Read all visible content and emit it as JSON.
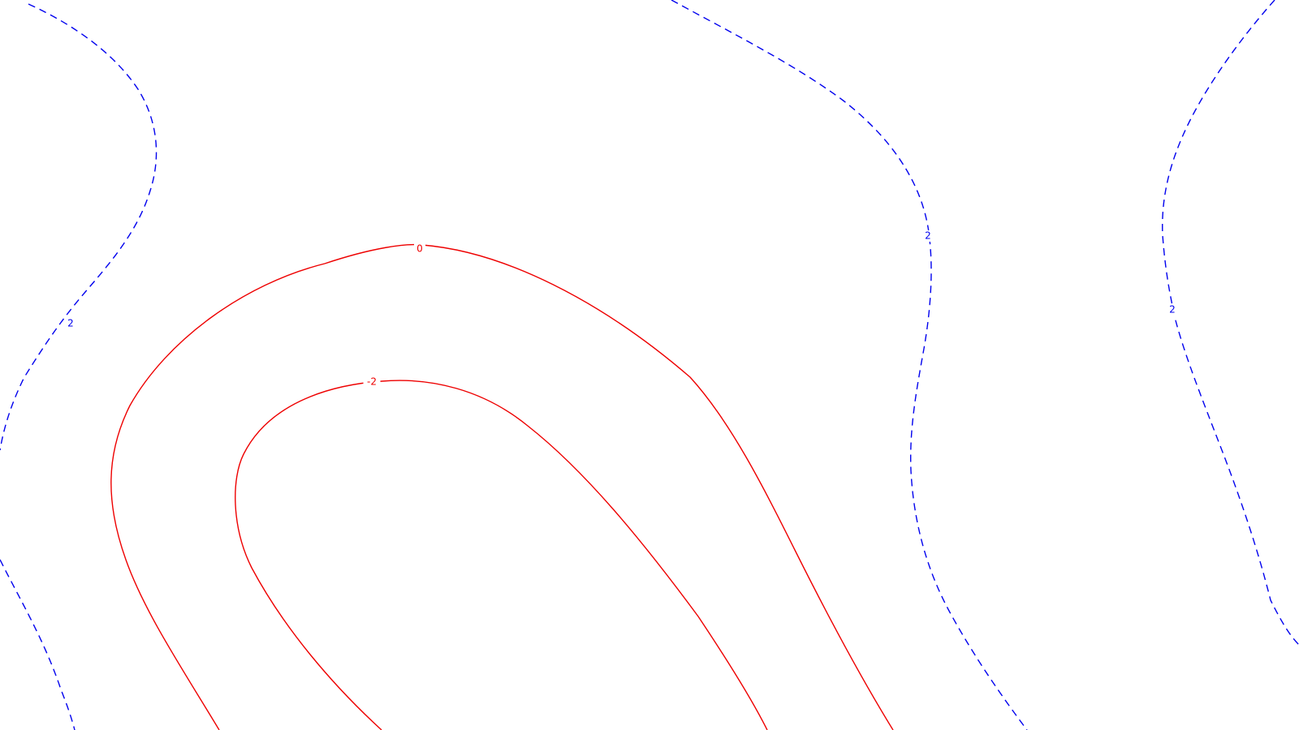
{
  "chart_data": {
    "type": "contour",
    "title": "",
    "xlabel": "",
    "ylabel": "",
    "colors": {
      "positive": "#0000ee",
      "non_positive": "#ee0000",
      "background": "#ffffff"
    },
    "levels": [
      {
        "id": "level-0",
        "value": 0,
        "label": "0",
        "line_style": "solid",
        "color": "#ee0000"
      },
      {
        "id": "level-neg2",
        "value": -2,
        "label": "-2",
        "line_style": "solid",
        "color": "#ee0000"
      },
      {
        "id": "level-pos2-left",
        "value": 2,
        "label": "2",
        "line_style": "dashed",
        "color": "#0000ee"
      },
      {
        "id": "level-pos2-left-lower",
        "value": 2,
        "label": "",
        "line_style": "dashed",
        "color": "#0000ee"
      },
      {
        "id": "level-pos2-middle",
        "value": 2,
        "label": "2",
        "line_style": "dashed",
        "color": "#0000ee"
      },
      {
        "id": "level-pos2-right",
        "value": 2,
        "label": "2",
        "line_style": "dashed",
        "color": "#0000ee"
      }
    ]
  }
}
